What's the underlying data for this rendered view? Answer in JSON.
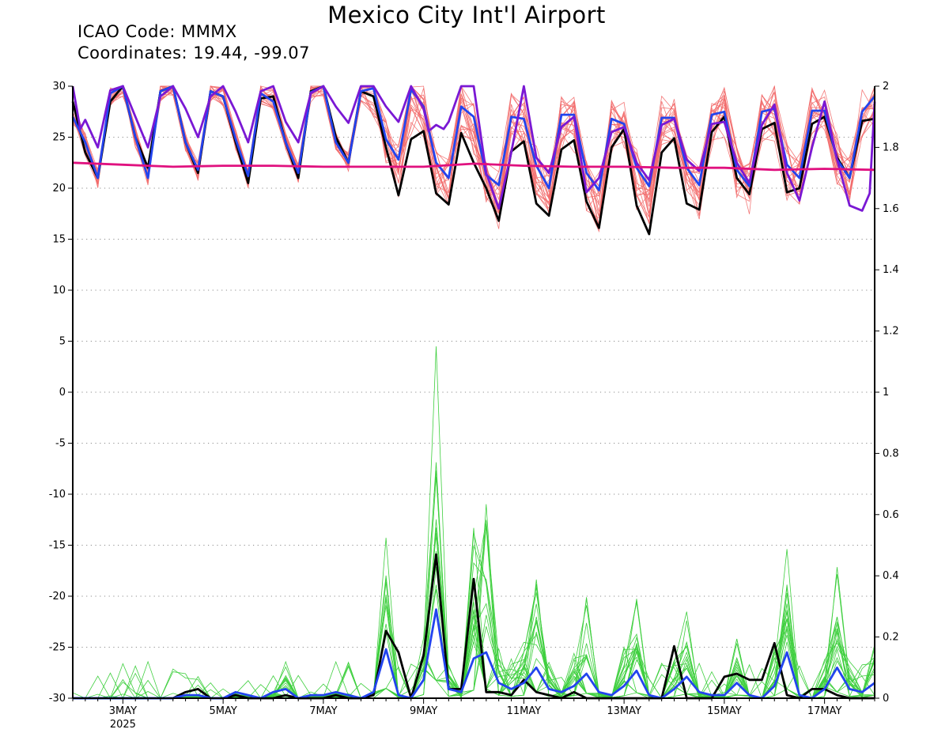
{
  "title": "Mexico City Int'l Airport",
  "icao_line": "ICAO Code: MMMX",
  "coord_line": "Coordinates: 19.44, -99.07",
  "colors": {
    "temp_members": "#f26a6a",
    "precip_members": "#3ecf3e",
    "control": "#000000",
    "ensemble_mean": "#2244ee",
    "purple_series": "#7a18d4",
    "magenta_series": "#e0117f",
    "grid": "#8c8c8c"
  },
  "chart_data": {
    "type": "line",
    "title": "Mexico City Int'l Airport",
    "xlabel": "",
    "ylabel": "",
    "x_range": [
      2.0,
      18.0
    ],
    "x_ticks": [
      {
        "x": 3,
        "label": "3MAY"
      },
      {
        "x": 5,
        "label": "5MAY"
      },
      {
        "x": 7,
        "label": "7MAY"
      },
      {
        "x": 9,
        "label": "9MAY"
      },
      {
        "x": 11,
        "label": "11MAY"
      },
      {
        "x": 13,
        "label": "13MAY"
      },
      {
        "x": 15,
        "label": "15MAY"
      },
      {
        "x": 17,
        "label": "17MAY"
      }
    ],
    "x_year_label": {
      "x": 3,
      "label": "2025"
    },
    "y_left": {
      "range": [
        -30,
        30
      ],
      "ticks": [
        -30,
        -25,
        -20,
        -15,
        -10,
        -5,
        0,
        5,
        10,
        15,
        20,
        25,
        30
      ]
    },
    "y_right": {
      "range": [
        0,
        2
      ],
      "ticks": [
        0,
        0.2,
        0.4,
        0.6,
        0.8,
        1,
        1.2,
        1.4,
        1.6,
        1.8,
        2
      ]
    },
    "grid": "horizontal dotted",
    "series_temp": [
      {
        "role": "control",
        "axis": "left",
        "x": [
          2.0,
          2.25,
          2.5,
          2.75,
          3.0,
          3.25,
          3.5,
          3.75,
          4.0,
          4.25,
          4.5,
          4.75,
          5.0,
          5.25,
          5.5,
          5.75,
          6.0,
          6.25,
          6.5,
          6.75,
          7.0,
          7.25,
          7.5,
          7.75,
          8.0,
          8.25,
          8.5,
          8.75,
          9.0,
          9.25,
          9.5,
          9.75,
          10.0,
          10.25,
          10.5,
          10.75,
          11.0,
          11.25,
          11.5,
          11.75,
          12.0,
          12.25,
          12.5,
          12.75,
          13.0,
          13.25,
          13.5,
          13.75,
          14.0,
          14.25,
          14.5,
          14.75,
          15.0,
          15.25,
          15.5,
          15.75,
          16.0,
          16.25,
          16.5,
          16.75,
          17.0,
          17.25,
          17.5,
          17.75,
          18.0
        ],
        "y": [
          28.5,
          23.5,
          21,
          28.5,
          30,
          25,
          22,
          29.5,
          30,
          24.5,
          21.5,
          29.5,
          29,
          24.5,
          20.5,
          28.8,
          29,
          24.5,
          21,
          29.5,
          30,
          25,
          22.5,
          29.5,
          29,
          24,
          19.3,
          24.8,
          25.6,
          19.5,
          18.4,
          25.4,
          22.5,
          20,
          16.8,
          23.6,
          24.6,
          18.5,
          17.3,
          23.8,
          24.7,
          18.7,
          16.1,
          24,
          25.8,
          18.3,
          15.5,
          23.5,
          24.9,
          18.5,
          17.9,
          25.5,
          27,
          21,
          19.4,
          25.8,
          26.4,
          19.6,
          20,
          26.3,
          27,
          23,
          21,
          26.6,
          26.8
        ]
      },
      {
        "role": "ensemble_mean",
        "axis": "left",
        "x": [
          2.0,
          2.25,
          2.5,
          2.75,
          3.0,
          3.25,
          3.5,
          3.75,
          4.0,
          4.25,
          4.5,
          4.75,
          5.0,
          5.25,
          5.5,
          5.75,
          6.0,
          6.25,
          6.5,
          6.75,
          7.0,
          7.25,
          7.5,
          7.75,
          8.0,
          8.25,
          8.5,
          8.75,
          9.0,
          9.25,
          9.5,
          9.75,
          10.0,
          10.25,
          10.5,
          10.75,
          11.0,
          11.25,
          11.5,
          11.75,
          12.0,
          12.25,
          12.5,
          12.75,
          13.0,
          13.25,
          13.5,
          13.75,
          14.0,
          14.25,
          14.5,
          14.75,
          15.0,
          15.25,
          15.5,
          15.75,
          16.0,
          16.25,
          16.5,
          16.75,
          17.0,
          17.25,
          17.5,
          17.75,
          18.0
        ],
        "y": [
          27,
          24.5,
          21,
          29.3,
          30,
          25,
          21,
          29.5,
          30,
          24.5,
          21.8,
          29.5,
          29,
          24.8,
          21.2,
          29.3,
          28.5,
          24.5,
          21.5,
          29.4,
          30,
          24.5,
          22.5,
          29.5,
          29.8,
          24.8,
          22.8,
          29.7,
          28,
          22.5,
          21,
          28,
          27,
          21.3,
          20.3,
          27,
          26.8,
          22.2,
          20,
          27.2,
          27.2,
          21.5,
          19.8,
          26.8,
          26.3,
          22,
          20.2,
          26.9,
          26.9,
          22,
          20.3,
          27.2,
          27.5,
          21.8,
          20.2,
          27.5,
          27.8,
          22.3,
          21,
          27.6,
          27.6,
          22.8,
          21,
          27.5,
          29
        ]
      },
      {
        "role": "purple",
        "axis": "left",
        "x": [
          2.0,
          2.15,
          2.25,
          2.5,
          2.75,
          3.0,
          3.25,
          3.5,
          3.75,
          4.0,
          4.25,
          4.5,
          4.75,
          5.0,
          5.25,
          5.5,
          5.75,
          6.0,
          6.25,
          6.5,
          6.75,
          7.0,
          7.25,
          7.5,
          7.75,
          8.0,
          8.25,
          8.5,
          8.75,
          9.0,
          9.1,
          9.25,
          9.4,
          9.5,
          9.75,
          10.0,
          10.25,
          10.5,
          10.75,
          11.0,
          11.25,
          11.5,
          11.75,
          12.0,
          12.25,
          12.5,
          12.75,
          13.0,
          13.25,
          13.5,
          13.75,
          14.0,
          14.25,
          14.5,
          14.75,
          15.0,
          15.25,
          15.5,
          15.75,
          16.0,
          16.25,
          16.5,
          16.75,
          17.0,
          17.25,
          17.5,
          17.75,
          17.9,
          18.0
        ],
        "y": [
          30,
          25.8,
          26.7,
          24,
          29.6,
          30,
          27,
          24,
          29,
          30,
          27.8,
          25,
          29,
          30,
          27.5,
          24.5,
          29.5,
          30,
          26.5,
          24.5,
          29.3,
          30,
          28,
          26.4,
          30,
          30,
          28,
          26.5,
          30,
          27.8,
          25.6,
          26.2,
          25.8,
          26.5,
          30,
          30,
          21.5,
          18,
          23.5,
          30,
          23,
          21.5,
          26,
          27,
          19.6,
          21,
          25.5,
          26,
          22.5,
          20.8,
          26.2,
          26.8,
          22.8,
          21.7,
          26.3,
          26.5,
          22.5,
          20.5,
          26.2,
          28.2,
          21.5,
          18.8,
          24,
          28.5,
          22.8,
          18.3,
          17.8,
          19.5,
          28.5
        ]
      },
      {
        "role": "magenta",
        "axis": "left",
        "x": [
          2,
          3,
          4,
          5,
          6,
          7,
          8,
          9,
          10,
          11,
          12,
          13,
          14,
          15,
          16,
          17,
          18
        ],
        "y": [
          22.5,
          22.3,
          22.1,
          22.2,
          22.2,
          22.1,
          22.1,
          22.1,
          22.4,
          22.2,
          22.1,
          22.1,
          22.0,
          22.0,
          21.8,
          21.9,
          21.8
        ]
      }
    ],
    "series_precip": [
      {
        "role": "control",
        "axis": "right",
        "x": [
          2.0,
          2.25,
          2.5,
          2.75,
          3.0,
          3.25,
          3.5,
          3.75,
          4.0,
          4.25,
          4.5,
          4.75,
          5.0,
          5.25,
          5.5,
          5.75,
          6.0,
          6.25,
          6.5,
          6.75,
          7.0,
          7.25,
          7.5,
          7.75,
          8.0,
          8.25,
          8.5,
          8.75,
          9.0,
          9.25,
          9.5,
          9.75,
          10.0,
          10.25,
          10.5,
          10.75,
          11.0,
          11.25,
          11.5,
          11.75,
          12.0,
          12.25,
          12.5,
          12.75,
          13.0,
          13.25,
          13.5,
          13.75,
          14.0,
          14.25,
          14.5,
          14.75,
          15.0,
          15.25,
          15.5,
          15.75,
          16.0,
          16.25,
          16.5,
          16.75,
          17.0,
          17.25,
          17.5,
          17.75,
          18.0
        ],
        "y": [
          0,
          0,
          0,
          0,
          0,
          0,
          0,
          0,
          0,
          0.02,
          0.03,
          0,
          0,
          0.01,
          0,
          0,
          0,
          0.01,
          0,
          0,
          0,
          0.01,
          0,
          0,
          0.01,
          0.22,
          0.15,
          0,
          0.14,
          0.47,
          0.03,
          0.03,
          0.39,
          0.02,
          0.02,
          0.01,
          0.06,
          0.02,
          0.01,
          0,
          0.02,
          0,
          0,
          0,
          0,
          0,
          0,
          0,
          0.17,
          0,
          0,
          0,
          0.07,
          0.08,
          0.06,
          0.06,
          0.18,
          0.01,
          0,
          0.03,
          0.03,
          0.01,
          0,
          0,
          0
        ]
      },
      {
        "role": "ensemble_mean",
        "axis": "right",
        "x": [
          2.0,
          2.25,
          2.5,
          2.75,
          3.0,
          3.25,
          3.5,
          3.75,
          4.0,
          4.25,
          4.5,
          4.75,
          5.0,
          5.25,
          5.5,
          5.75,
          6.0,
          6.25,
          6.5,
          6.75,
          7.0,
          7.25,
          7.5,
          7.75,
          8.0,
          8.25,
          8.5,
          8.75,
          9.0,
          9.25,
          9.5,
          9.75,
          10.0,
          10.25,
          10.5,
          10.75,
          11.0,
          11.25,
          11.5,
          11.75,
          12.0,
          12.25,
          12.5,
          12.75,
          13.0,
          13.25,
          13.5,
          13.75,
          14.0,
          14.25,
          14.5,
          14.75,
          15.0,
          15.25,
          15.5,
          15.75,
          16.0,
          16.25,
          16.5,
          16.75,
          17.0,
          17.25,
          17.5,
          17.75,
          18.0
        ],
        "y": [
          0,
          0,
          0,
          0,
          0,
          0,
          0,
          0,
          0,
          0.01,
          0.01,
          0,
          0,
          0.02,
          0.01,
          0,
          0.02,
          0.03,
          0,
          0.01,
          0.01,
          0.02,
          0.01,
          0,
          0.02,
          0.16,
          0.01,
          0,
          0.06,
          0.29,
          0.03,
          0.02,
          0.13,
          0.15,
          0.05,
          0.03,
          0.05,
          0.1,
          0.03,
          0.02,
          0.04,
          0.08,
          0.02,
          0.01,
          0.04,
          0.09,
          0.01,
          0,
          0.03,
          0.07,
          0.02,
          0.01,
          0.01,
          0.05,
          0.01,
          0,
          0.04,
          0.15,
          0.01,
          0,
          0.03,
          0.1,
          0.03,
          0.02,
          0.05
        ]
      }
    ]
  }
}
